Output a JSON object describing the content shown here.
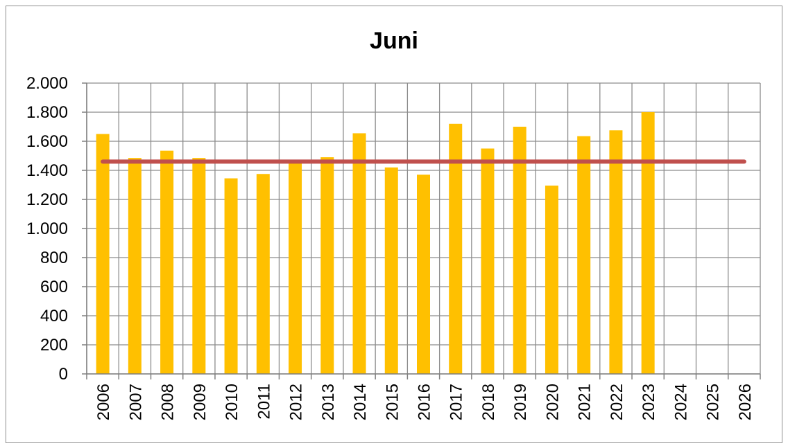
{
  "chart_data": {
    "type": "bar",
    "title": "Juni",
    "xlabel": "",
    "ylabel": "",
    "ylim": [
      0,
      2000
    ],
    "ytick_values": [
      0,
      200,
      400,
      600,
      800,
      1000,
      1200,
      1400,
      1600,
      1800,
      2000
    ],
    "ytick_labels": [
      "0",
      "200",
      "400",
      "600",
      "800",
      "1.000",
      "1.200",
      "1.400",
      "1.600",
      "1.800",
      "2.000"
    ],
    "categories": [
      "2006",
      "2007",
      "2008",
      "2009",
      "2010",
      "2011",
      "2012",
      "2013",
      "2014",
      "2015",
      "2016",
      "2017",
      "2018",
      "2019",
      "2020",
      "2021",
      "2022",
      "2023",
      "2024",
      "2025",
      "2026"
    ],
    "series": [
      {
        "type": "bar",
        "color": "#FFC000",
        "values": [
          1650,
          1485,
          1535,
          1485,
          1345,
          1375,
          1460,
          1490,
          1655,
          1420,
          1370,
          1720,
          1550,
          1700,
          1295,
          1635,
          1675,
          1800,
          null,
          null,
          null
        ]
      },
      {
        "type": "line",
        "color": "#C0504D",
        "values": [
          1460,
          1460,
          1460,
          1460,
          1460,
          1460,
          1460,
          1460,
          1460,
          1460,
          1460,
          1460,
          1460,
          1460,
          1460,
          1460,
          1460,
          1460,
          1460,
          1460,
          1460
        ]
      }
    ],
    "grid": true,
    "legend": "none"
  }
}
